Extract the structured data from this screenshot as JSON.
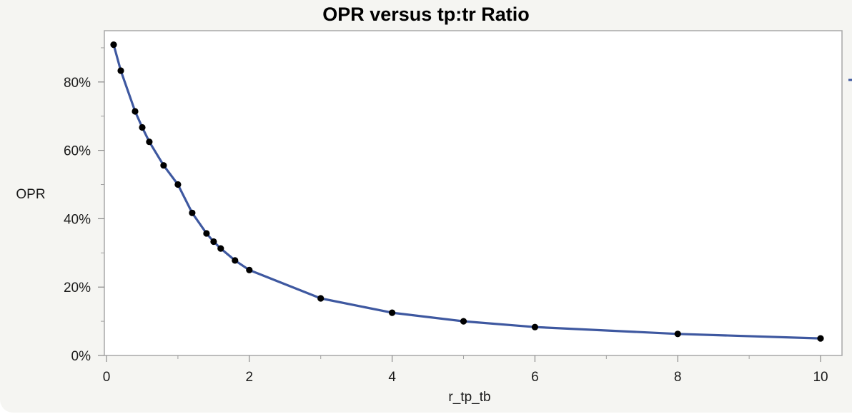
{
  "chart_data": {
    "type": "line",
    "title": "OPR versus tp:tr Ratio",
    "xlabel": "r_tp_tb",
    "ylabel": "OPR",
    "xlim": [
      0,
      10.3
    ],
    "ylim": [
      0,
      0.95
    ],
    "x_ticks": [
      0,
      2,
      4,
      6,
      8,
      10
    ],
    "x_tick_labels": [
      "0",
      "2",
      "4",
      "6",
      "8",
      "10"
    ],
    "y_ticks": [
      0,
      0.2,
      0.4,
      0.6,
      0.8
    ],
    "y_tick_labels": [
      "0%",
      "20%",
      "40%",
      "60%",
      "80%"
    ],
    "grid": false,
    "series": [
      {
        "color": "#3e58a0",
        "marker_color": "#000000",
        "x": [
          0.1,
          0.2,
          0.4,
          0.5,
          0.6,
          0.8,
          1.0,
          1.2,
          1.4,
          1.5,
          1.6,
          1.8,
          2.0,
          3.0,
          4.0,
          5.0,
          6.0,
          8.0,
          10.0
        ],
        "y": [
          0.909,
          0.833,
          0.714,
          0.667,
          0.625,
          0.556,
          0.5,
          0.417,
          0.357,
          0.333,
          0.313,
          0.278,
          0.25,
          0.167,
          0.125,
          0.1,
          0.083,
          0.063,
          0.05
        ]
      }
    ]
  }
}
